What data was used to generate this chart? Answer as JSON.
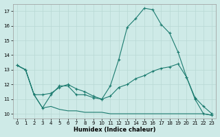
{
  "xlabel": "Humidex (Indice chaleur)",
  "background_color": "#ceeae7",
  "grid_color": "#b8d8d4",
  "line_color": "#1a7a6e",
  "xlim": [
    -0.5,
    23.5
  ],
  "ylim": [
    9.7,
    17.5
  ],
  "yticks": [
    10,
    11,
    12,
    13,
    14,
    15,
    16,
    17
  ],
  "xticks": [
    0,
    1,
    2,
    3,
    4,
    5,
    6,
    7,
    8,
    9,
    10,
    11,
    12,
    13,
    14,
    15,
    16,
    17,
    18,
    19,
    20,
    21,
    22,
    23
  ],
  "line1_x": [
    0,
    1,
    2,
    3,
    4,
    5,
    6,
    7,
    8,
    9,
    10,
    11,
    12,
    13,
    14,
    15,
    16,
    17,
    18,
    19,
    20,
    21,
    22,
    23
  ],
  "line1_y": [
    13.3,
    13.0,
    11.3,
    10.4,
    11.3,
    11.9,
    11.9,
    11.3,
    11.3,
    11.1,
    11.0,
    11.9,
    13.7,
    15.9,
    16.5,
    17.2,
    17.1,
    16.1,
    15.5,
    14.2,
    12.5,
    11.0,
    10.0,
    9.9
  ],
  "line2_x": [
    0,
    1,
    2,
    3,
    4,
    5,
    6,
    7,
    8,
    9,
    10,
    11,
    12,
    13,
    14,
    15,
    16,
    17,
    18,
    19,
    20,
    21,
    22,
    23
  ],
  "line2_y": [
    13.3,
    13.0,
    11.3,
    11.3,
    11.4,
    11.8,
    12.0,
    11.7,
    11.5,
    11.2,
    11.0,
    11.2,
    11.8,
    12.0,
    12.4,
    12.6,
    12.9,
    13.1,
    13.2,
    13.4,
    12.5,
    11.1,
    10.5,
    10.0
  ],
  "line3_x": [
    0,
    1,
    2,
    3,
    4,
    5,
    6,
    7,
    8,
    9,
    10,
    11,
    12,
    13,
    14,
    15,
    16,
    17,
    18,
    19,
    20,
    21,
    22,
    23
  ],
  "line3_y": [
    13.3,
    13.0,
    11.3,
    10.4,
    10.5,
    10.3,
    10.2,
    10.2,
    10.1,
    10.1,
    10.1,
    10.0,
    10.0,
    10.0,
    10.0,
    10.0,
    10.0,
    10.0,
    10.0,
    10.0,
    10.0,
    10.0,
    10.0,
    9.9
  ]
}
